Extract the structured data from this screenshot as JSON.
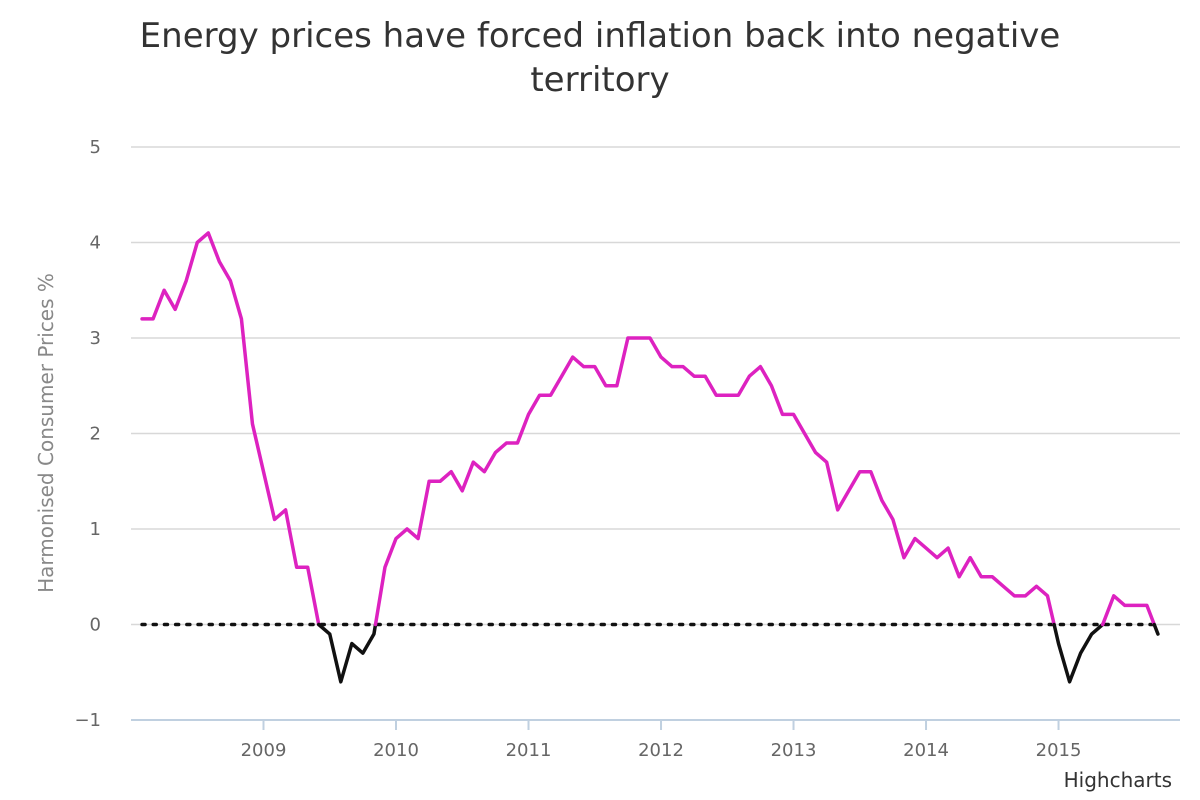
{
  "credits": "Highcharts",
  "colors": {
    "positive": "#dd22c0",
    "negative": "#111111",
    "grid": "#d8d8d8",
    "axis": "#c0d0e0",
    "zero_line": "#111111"
  },
  "chart_data": {
    "type": "line",
    "title": "Energy prices have forced inflation back into negative territory",
    "ylabel": "Harmonised Consumer Prices %",
    "xlabel": "",
    "ylim": [
      -1,
      5
    ],
    "y_ticks": [
      -1,
      0,
      1,
      2,
      3,
      4,
      5
    ],
    "y_tick_labels": [
      "−1",
      "0",
      "1",
      "2",
      "3",
      "4",
      "5"
    ],
    "x_ticks": [
      "2009",
      "2010",
      "2011",
      "2012",
      "2013",
      "2014",
      "2015"
    ],
    "x_range": [
      "2008-01",
      "2015-12"
    ],
    "zero_line": "dotted",
    "grid": true,
    "legend": "none",
    "color_rule": "values below 0 drawn in black, values at or above 0 in magenta",
    "series": [
      {
        "x": [
          "2008-02",
          "2008-03",
          "2008-04",
          "2008-05",
          "2008-06",
          "2008-07",
          "2008-08",
          "2008-09",
          "2008-10",
          "2008-11",
          "2008-12",
          "2009-01",
          "2009-02",
          "2009-03",
          "2009-04",
          "2009-05",
          "2009-06",
          "2009-07",
          "2009-08",
          "2009-09",
          "2009-10",
          "2009-11",
          "2009-12",
          "2010-01",
          "2010-02",
          "2010-03",
          "2010-04",
          "2010-05",
          "2010-06",
          "2010-07",
          "2010-08",
          "2010-09",
          "2010-10",
          "2010-11",
          "2010-12",
          "2011-01",
          "2011-02",
          "2011-03",
          "2011-04",
          "2011-05",
          "2011-06",
          "2011-07",
          "2011-08",
          "2011-09",
          "2011-10",
          "2011-11",
          "2011-12",
          "2012-01",
          "2012-02",
          "2012-03",
          "2012-04",
          "2012-05",
          "2012-06",
          "2012-07",
          "2012-08",
          "2012-09",
          "2012-10",
          "2012-11",
          "2012-12",
          "2013-01",
          "2013-02",
          "2013-03",
          "2013-04",
          "2013-05",
          "2013-06",
          "2013-07",
          "2013-08",
          "2013-09",
          "2013-10",
          "2013-11",
          "2013-12",
          "2014-01",
          "2014-02",
          "2014-03",
          "2014-04",
          "2014-05",
          "2014-06",
          "2014-07",
          "2014-08",
          "2014-09",
          "2014-10",
          "2014-11",
          "2014-12",
          "2015-01",
          "2015-02",
          "2015-03",
          "2015-04",
          "2015-05",
          "2015-06",
          "2015-07",
          "2015-08",
          "2015-09",
          "2015-10"
        ],
        "values": [
          3.2,
          3.2,
          3.5,
          3.3,
          3.6,
          4.0,
          4.1,
          3.8,
          3.6,
          3.2,
          2.1,
          1.6,
          1.1,
          1.2,
          0.6,
          0.6,
          0.0,
          -0.1,
          -0.6,
          -0.2,
          -0.3,
          -0.1,
          0.6,
          0.9,
          1.0,
          0.9,
          1.5,
          1.5,
          1.6,
          1.4,
          1.7,
          1.6,
          1.8,
          1.9,
          1.9,
          2.2,
          2.4,
          2.4,
          2.6,
          2.8,
          2.7,
          2.7,
          2.5,
          2.5,
          3.0,
          3.0,
          3.0,
          2.8,
          2.7,
          2.7,
          2.6,
          2.6,
          2.4,
          2.4,
          2.4,
          2.6,
          2.7,
          2.5,
          2.2,
          2.2,
          2.0,
          1.8,
          1.7,
          1.2,
          1.4,
          1.6,
          1.6,
          1.3,
          1.1,
          0.7,
          0.9,
          0.8,
          0.7,
          0.8,
          0.5,
          0.7,
          0.5,
          0.5,
          0.4,
          0.3,
          0.3,
          0.4,
          0.3,
          -0.2,
          -0.6,
          -0.3,
          -0.1,
          0.0,
          0.3,
          0.2,
          0.2,
          0.2,
          -0.1
        ]
      }
    ]
  }
}
